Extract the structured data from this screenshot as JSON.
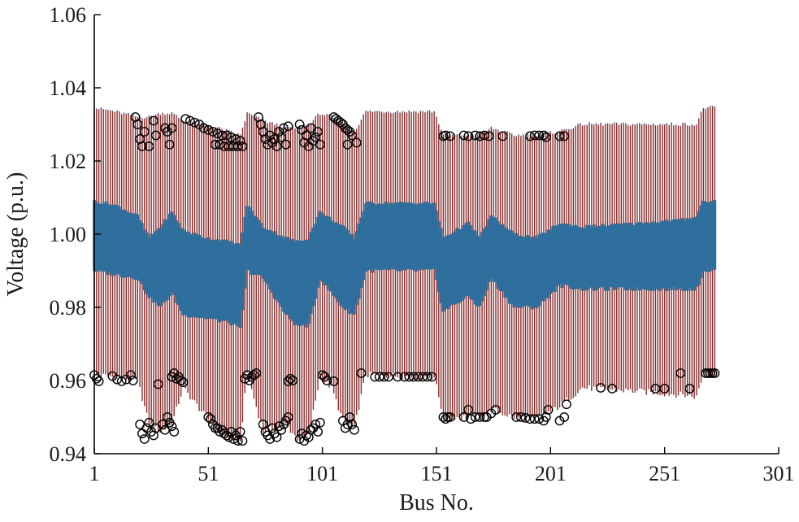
{
  "chart_data": {
    "type": "box",
    "title": "",
    "xlabel": "Bus No.",
    "ylabel": "Voltage (p.u.)",
    "xlim": [
      1,
      301
    ],
    "ylim": [
      0.94,
      1.06
    ],
    "xticks": [
      "1",
      "51",
      "101",
      "151",
      "201",
      "251",
      "301"
    ],
    "yticks": [
      "0.94",
      "0.96",
      "0.98",
      "1.00",
      "1.02",
      "1.04",
      "1.06"
    ],
    "grid": false,
    "legend": "none",
    "colors": {
      "box": "#2e6f9e",
      "whisker": "#8b2c2c",
      "outlier": "#000000",
      "axis": "#000000"
    },
    "n_buses": 273,
    "bus_profile": [
      {
        "bus": 1,
        "box_low": 0.99,
        "box_high": 1.009,
        "whisker_low": 0.9615,
        "whisker_high": 1.0345
      },
      {
        "bus": 10,
        "box_low": 0.989,
        "box_high": 1.008,
        "whisker_low": 0.961,
        "whisker_high": 1.0335
      },
      {
        "bus": 20,
        "box_low": 0.988,
        "box_high": 1.005,
        "whisker_low": 0.96,
        "whisker_high": 1.032
      },
      {
        "bus": 25,
        "box_low": 0.983,
        "box_high": 0.999,
        "whisker_low": 0.948,
        "whisker_high": 1.032
      },
      {
        "bus": 30,
        "box_low": 0.98,
        "box_high": 1.002,
        "whisker_low": 0.946,
        "whisker_high": 1.033
      },
      {
        "bus": 35,
        "box_low": 0.984,
        "box_high": 1.006,
        "whisker_low": 0.948,
        "whisker_high": 1.033
      },
      {
        "bus": 40,
        "box_low": 0.978,
        "box_high": 1.001,
        "whisker_low": 0.958,
        "whisker_high": 1.031
      },
      {
        "bus": 50,
        "box_low": 0.977,
        "box_high": 0.999,
        "whisker_low": 0.95,
        "whisker_high": 1.03
      },
      {
        "bus": 60,
        "box_low": 0.976,
        "box_high": 0.998,
        "whisker_low": 0.944,
        "whisker_high": 1.028
      },
      {
        "bus": 65,
        "box_low": 0.974,
        "box_high": 0.997,
        "whisker_low": 0.943,
        "whisker_high": 1.027
      },
      {
        "bus": 68,
        "box_low": 0.99,
        "box_high": 1.008,
        "whisker_low": 0.962,
        "whisker_high": 1.033
      },
      {
        "bus": 75,
        "box_low": 0.988,
        "box_high": 1.002,
        "whisker_low": 0.946,
        "whisker_high": 1.031
      },
      {
        "bus": 85,
        "box_low": 0.978,
        "box_high": 0.999,
        "whisker_low": 0.948,
        "whisker_high": 1.029
      },
      {
        "bus": 90,
        "box_low": 0.975,
        "box_high": 0.998,
        "whisker_low": 0.944,
        "whisker_high": 1.029
      },
      {
        "bus": 95,
        "box_low": 0.975,
        "box_high": 0.999,
        "whisker_low": 0.945,
        "whisker_high": 1.03
      },
      {
        "bus": 100,
        "box_low": 0.988,
        "box_high": 1.006,
        "whisker_low": 0.961,
        "whisker_high": 1.033
      },
      {
        "bus": 105,
        "box_low": 0.984,
        "box_high": 1.004,
        "whisker_low": 0.958,
        "whisker_high": 1.032
      },
      {
        "bus": 110,
        "box_low": 0.98,
        "box_high": 1.002,
        "whisker_low": 0.949,
        "whisker_high": 1.03
      },
      {
        "bus": 115,
        "box_low": 0.978,
        "box_high": 0.999,
        "whisker_low": 0.947,
        "whisker_high": 1.028
      },
      {
        "bus": 120,
        "box_low": 0.99,
        "box_high": 1.0085,
        "whisker_low": 0.9615,
        "whisker_high": 1.0335
      },
      {
        "bus": 150,
        "box_low": 0.99,
        "box_high": 1.0085,
        "whisker_low": 0.961,
        "whisker_high": 1.0335
      },
      {
        "bus": 154,
        "box_low": 0.979,
        "box_high": 0.999,
        "whisker_low": 0.95,
        "whisker_high": 1.027
      },
      {
        "bus": 165,
        "box_low": 0.983,
        "box_high": 1.003,
        "whisker_low": 0.95,
        "whisker_high": 1.027
      },
      {
        "bus": 170,
        "box_low": 0.98,
        "box_high": 0.999,
        "whisker_low": 0.95,
        "whisker_high": 1.027
      },
      {
        "bus": 175,
        "box_low": 0.988,
        "box_high": 1.005,
        "whisker_low": 0.952,
        "whisker_high": 1.029
      },
      {
        "bus": 185,
        "box_low": 0.98,
        "box_high": 1.0,
        "whisker_low": 0.95,
        "whisker_high": 1.027
      },
      {
        "bus": 195,
        "box_low": 0.98,
        "box_high": 0.999,
        "whisker_low": 0.9495,
        "whisker_high": 1.027
      },
      {
        "bus": 205,
        "box_low": 0.986,
        "box_high": 1.003,
        "whisker_low": 0.953,
        "whisker_high": 1.028
      },
      {
        "bus": 215,
        "box_low": 0.985,
        "box_high": 1.002,
        "whisker_low": 0.958,
        "whisker_high": 1.03
      },
      {
        "bus": 240,
        "box_low": 0.985,
        "box_high": 1.003,
        "whisker_low": 0.957,
        "whisker_high": 1.03
      },
      {
        "bus": 260,
        "box_low": 0.985,
        "box_high": 1.004,
        "whisker_low": 0.956,
        "whisker_high": 1.03
      },
      {
        "bus": 265,
        "box_low": 0.985,
        "box_high": 1.005,
        "whisker_low": 0.9555,
        "whisker_high": 1.03
      },
      {
        "bus": 268,
        "box_low": 0.99,
        "box_high": 1.009,
        "whisker_low": 0.962,
        "whisker_high": 1.0345
      },
      {
        "bus": 273,
        "box_low": 0.99,
        "box_high": 1.009,
        "whisker_low": 0.962,
        "whisker_high": 1.0345
      }
    ],
    "outliers": [
      {
        "bus": 1,
        "v": 0.9615
      },
      {
        "bus": 2,
        "v": 0.9605
      },
      {
        "bus": 3,
        "v": 0.9598
      },
      {
        "bus": 9,
        "v": 0.9612
      },
      {
        "bus": 11,
        "v": 0.9603
      },
      {
        "bus": 13,
        "v": 0.9598
      },
      {
        "bus": 15,
        "v": 0.9603
      },
      {
        "bus": 17,
        "v": 0.9615
      },
      {
        "bus": 18,
        "v": 0.96
      },
      {
        "bus": 19,
        "v": 1.032
      },
      {
        "bus": 20,
        "v": 1.03
      },
      {
        "bus": 21,
        "v": 1.026
      },
      {
        "bus": 22,
        "v": 1.024
      },
      {
        "bus": 23,
        "v": 1.028
      },
      {
        "bus": 21,
        "v": 0.948
      },
      {
        "bus": 22,
        "v": 0.9455
      },
      {
        "bus": 23,
        "v": 0.944
      },
      {
        "bus": 24,
        "v": 0.947
      },
      {
        "bus": 25,
        "v": 0.9485
      },
      {
        "bus": 26,
        "v": 0.946
      },
      {
        "bus": 27,
        "v": 0.945
      },
      {
        "bus": 28,
        "v": 0.947
      },
      {
        "bus": 25,
        "v": 1.024
      },
      {
        "bus": 27,
        "v": 1.031
      },
      {
        "bus": 28,
        "v": 1.027
      },
      {
        "bus": 29,
        "v": 0.959
      },
      {
        "bus": 31,
        "v": 0.948
      },
      {
        "bus": 32,
        "v": 0.9465
      },
      {
        "bus": 33,
        "v": 0.95
      },
      {
        "bus": 34,
        "v": 0.9485
      },
      {
        "bus": 35,
        "v": 0.9475
      },
      {
        "bus": 36,
        "v": 0.946
      },
      {
        "bus": 32,
        "v": 1.029
      },
      {
        "bus": 33,
        "v": 1.028
      },
      {
        "bus": 34,
        "v": 1.0245
      },
      {
        "bus": 35,
        "v": 1.029
      },
      {
        "bus": 35,
        "v": 0.961
      },
      {
        "bus": 36,
        "v": 0.962
      },
      {
        "bus": 37,
        "v": 0.9605
      },
      {
        "bus": 38,
        "v": 0.961
      },
      {
        "bus": 39,
        "v": 0.96
      },
      {
        "bus": 40,
        "v": 0.9595
      },
      {
        "bus": 41,
        "v": 1.0315
      },
      {
        "bus": 43,
        "v": 1.031
      },
      {
        "bus": 45,
        "v": 1.0305
      },
      {
        "bus": 47,
        "v": 1.03
      },
      {
        "bus": 49,
        "v": 1.029
      },
      {
        "bus": 51,
        "v": 1.0285
      },
      {
        "bus": 53,
        "v": 1.028
      },
      {
        "bus": 55,
        "v": 1.0275
      },
      {
        "bus": 57,
        "v": 1.027
      },
      {
        "bus": 59,
        "v": 1.027
      },
      {
        "bus": 61,
        "v": 1.0265
      },
      {
        "bus": 63,
        "v": 1.026
      },
      {
        "bus": 65,
        "v": 1.0255
      },
      {
        "bus": 54,
        "v": 1.0245
      },
      {
        "bus": 56,
        "v": 1.0245
      },
      {
        "bus": 58,
        "v": 1.024
      },
      {
        "bus": 60,
        "v": 1.024
      },
      {
        "bus": 62,
        "v": 1.024
      },
      {
        "bus": 64,
        "v": 1.024
      },
      {
        "bus": 66,
        "v": 1.024
      },
      {
        "bus": 51,
        "v": 0.95
      },
      {
        "bus": 52,
        "v": 0.9495
      },
      {
        "bus": 53,
        "v": 0.948
      },
      {
        "bus": 54,
        "v": 0.947
      },
      {
        "bus": 55,
        "v": 0.947
      },
      {
        "bus": 56,
        "v": 0.946
      },
      {
        "bus": 57,
        "v": 0.9465
      },
      {
        "bus": 58,
        "v": 0.9455
      },
      {
        "bus": 59,
        "v": 0.945
      },
      {
        "bus": 60,
        "v": 0.9445
      },
      {
        "bus": 61,
        "v": 0.946
      },
      {
        "bus": 62,
        "v": 0.944
      },
      {
        "bus": 63,
        "v": 0.945
      },
      {
        "bus": 64,
        "v": 0.9435
      },
      {
        "bus": 65,
        "v": 0.946
      },
      {
        "bus": 66,
        "v": 0.9435
      },
      {
        "bus": 67,
        "v": 0.9605
      },
      {
        "bus": 68,
        "v": 0.9615
      },
      {
        "bus": 69,
        "v": 0.96
      },
      {
        "bus": 70,
        "v": 0.961
      },
      {
        "bus": 71,
        "v": 0.9615
      },
      {
        "bus": 72,
        "v": 0.962
      },
      {
        "bus": 73,
        "v": 1.032
      },
      {
        "bus": 74,
        "v": 1.03
      },
      {
        "bus": 75,
        "v": 1.028
      },
      {
        "bus": 76,
        "v": 1.026
      },
      {
        "bus": 77,
        "v": 1.0245
      },
      {
        "bus": 78,
        "v": 1.027
      },
      {
        "bus": 79,
        "v": 1.025
      },
      {
        "bus": 80,
        "v": 1.026
      },
      {
        "bus": 81,
        "v": 1.024
      },
      {
        "bus": 82,
        "v": 1.028
      },
      {
        "bus": 83,
        "v": 1.0265
      },
      {
        "bus": 84,
        "v": 1.029
      },
      {
        "bus": 85,
        "v": 1.0245
      },
      {
        "bus": 86,
        "v": 1.0295
      },
      {
        "bus": 75,
        "v": 0.948
      },
      {
        "bus": 76,
        "v": 0.946
      },
      {
        "bus": 77,
        "v": 0.945
      },
      {
        "bus": 78,
        "v": 0.944
      },
      {
        "bus": 79,
        "v": 0.947
      },
      {
        "bus": 80,
        "v": 0.9455
      },
      {
        "bus": 81,
        "v": 0.9445
      },
      {
        "bus": 82,
        "v": 0.9475
      },
      {
        "bus": 83,
        "v": 0.9465
      },
      {
        "bus": 84,
        "v": 0.948
      },
      {
        "bus": 85,
        "v": 0.949
      },
      {
        "bus": 86,
        "v": 0.95
      },
      {
        "bus": 86,
        "v": 0.9598
      },
      {
        "bus": 87,
        "v": 0.9605
      },
      {
        "bus": 88,
        "v": 0.96
      },
      {
        "bus": 91,
        "v": 1.03
      },
      {
        "bus": 92,
        "v": 1.0285
      },
      {
        "bus": 93,
        "v": 1.025
      },
      {
        "bus": 94,
        "v": 1.027
      },
      {
        "bus": 95,
        "v": 1.024
      },
      {
        "bus": 96,
        "v": 1.029
      },
      {
        "bus": 97,
        "v": 1.0255
      },
      {
        "bus": 98,
        "v": 1.0265
      },
      {
        "bus": 99,
        "v": 1.028
      },
      {
        "bus": 100,
        "v": 1.0245
      },
      {
        "bus": 91,
        "v": 0.944
      },
      {
        "bus": 92,
        "v": 0.9455
      },
      {
        "bus": 93,
        "v": 0.9435
      },
      {
        "bus": 94,
        "v": 0.945
      },
      {
        "bus": 95,
        "v": 0.9445
      },
      {
        "bus": 96,
        "v": 0.9465
      },
      {
        "bus": 97,
        "v": 0.947
      },
      {
        "bus": 98,
        "v": 0.948
      },
      {
        "bus": 99,
        "v": 0.946
      },
      {
        "bus": 100,
        "v": 0.9485
      },
      {
        "bus": 101,
        "v": 0.9615
      },
      {
        "bus": 102,
        "v": 0.961
      },
      {
        "bus": 103,
        "v": 0.96
      },
      {
        "bus": 106,
        "v": 0.9598
      },
      {
        "bus": 106,
        "v": 1.032
      },
      {
        "bus": 107,
        "v": 1.0315
      },
      {
        "bus": 108,
        "v": 1.031
      },
      {
        "bus": 109,
        "v": 1.0305
      },
      {
        "bus": 110,
        "v": 1.03
      },
      {
        "bus": 111,
        "v": 1.029
      },
      {
        "bus": 112,
        "v": 1.0285
      },
      {
        "bus": 113,
        "v": 1.028
      },
      {
        "bus": 114,
        "v": 1.027
      },
      {
        "bus": 112,
        "v": 1.0245
      },
      {
        "bus": 116,
        "v": 1.025
      },
      {
        "bus": 110,
        "v": 0.949
      },
      {
        "bus": 111,
        "v": 0.947
      },
      {
        "bus": 112,
        "v": 0.948
      },
      {
        "bus": 113,
        "v": 0.95
      },
      {
        "bus": 114,
        "v": 0.948
      },
      {
        "bus": 115,
        "v": 0.9465
      },
      {
        "bus": 118,
        "v": 0.962
      },
      {
        "bus": 124,
        "v": 0.961
      },
      {
        "bus": 126,
        "v": 0.961
      },
      {
        "bus": 128,
        "v": 0.961
      },
      {
        "bus": 130,
        "v": 0.961
      },
      {
        "bus": 134,
        "v": 0.961
      },
      {
        "bus": 137,
        "v": 0.961
      },
      {
        "bus": 139,
        "v": 0.961
      },
      {
        "bus": 141,
        "v": 0.961
      },
      {
        "bus": 143,
        "v": 0.961
      },
      {
        "bus": 145,
        "v": 0.961
      },
      {
        "bus": 147,
        "v": 0.961
      },
      {
        "bus": 149,
        "v": 0.961
      },
      {
        "bus": 154,
        "v": 1.0268
      },
      {
        "bus": 155,
        "v": 1.027
      },
      {
        "bus": 157,
        "v": 1.0268
      },
      {
        "bus": 154,
        "v": 0.95
      },
      {
        "bus": 155,
        "v": 0.9495
      },
      {
        "bus": 156,
        "v": 0.95
      },
      {
        "bus": 157,
        "v": 0.95
      },
      {
        "bus": 163,
        "v": 1.027
      },
      {
        "bus": 165,
        "v": 1.0268
      },
      {
        "bus": 168,
        "v": 1.027
      },
      {
        "bus": 170,
        "v": 1.0268
      },
      {
        "bus": 172,
        "v": 1.027
      },
      {
        "bus": 174,
        "v": 1.0268
      },
      {
        "bus": 163,
        "v": 0.95
      },
      {
        "bus": 165,
        "v": 0.952
      },
      {
        "bus": 166,
        "v": 0.9495
      },
      {
        "bus": 168,
        "v": 0.95
      },
      {
        "bus": 170,
        "v": 0.95
      },
      {
        "bus": 172,
        "v": 0.95
      },
      {
        "bus": 173,
        "v": 0.95
      },
      {
        "bus": 175,
        "v": 0.951
      },
      {
        "bus": 177,
        "v": 0.952
      },
      {
        "bus": 180,
        "v": 1.0268
      },
      {
        "bus": 186,
        "v": 0.95
      },
      {
        "bus": 188,
        "v": 0.95
      },
      {
        "bus": 190,
        "v": 0.9498
      },
      {
        "bus": 192,
        "v": 0.9495
      },
      {
        "bus": 194,
        "v": 0.9495
      },
      {
        "bus": 196,
        "v": 0.9495
      },
      {
        "bus": 198,
        "v": 0.949
      },
      {
        "bus": 199,
        "v": 0.95
      },
      {
        "bus": 192,
        "v": 1.0268
      },
      {
        "bus": 194,
        "v": 1.027
      },
      {
        "bus": 196,
        "v": 1.027
      },
      {
        "bus": 198,
        "v": 1.027
      },
      {
        "bus": 199,
        "v": 1.0265
      },
      {
        "bus": 200,
        "v": 0.952
      },
      {
        "bus": 205,
        "v": 1.0268
      },
      {
        "bus": 207,
        "v": 1.0268
      },
      {
        "bus": 205,
        "v": 0.949
      },
      {
        "bus": 207,
        "v": 0.95
      },
      {
        "bus": 208,
        "v": 0.9535
      },
      {
        "bus": 223,
        "v": 0.958
      },
      {
        "bus": 228,
        "v": 0.9578
      },
      {
        "bus": 247,
        "v": 0.9578
      },
      {
        "bus": 251,
        "v": 0.9578
      },
      {
        "bus": 258,
        "v": 0.962
      },
      {
        "bus": 262,
        "v": 0.9578
      },
      {
        "bus": 269,
        "v": 0.962
      },
      {
        "bus": 270,
        "v": 0.962
      },
      {
        "bus": 271,
        "v": 0.962
      },
      {
        "bus": 272,
        "v": 0.962
      },
      {
        "bus": 273,
        "v": 0.962
      }
    ]
  }
}
